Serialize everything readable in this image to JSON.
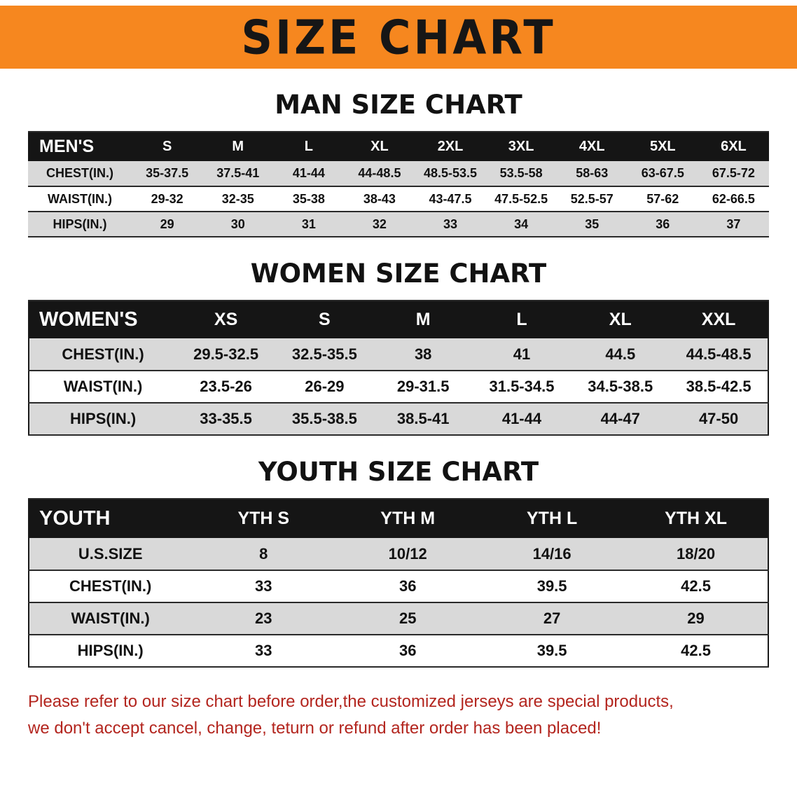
{
  "banner": {
    "title": "SIZE CHART"
  },
  "colors": {
    "banner_bg": "#F6871F",
    "header_bg": "#151515",
    "row_alt_bg": "#D9D9D9",
    "disclaimer_red": "#B3251E"
  },
  "sections": [
    {
      "heading": "MAN SIZE CHART",
      "table": {
        "header": [
          "MEN'S",
          "S",
          "M",
          "L",
          "XL",
          "2XL",
          "3XL",
          "4XL",
          "5XL",
          "6XL"
        ],
        "rows": [
          [
            "CHEST(IN.)",
            "35-37.5",
            "37.5-41",
            "41-44",
            "44-48.5",
            "48.5-53.5",
            "53.5-58",
            "58-63",
            "63-67.5",
            "67.5-72"
          ],
          [
            "WAIST(IN.)",
            "29-32",
            "32-35",
            "35-38",
            "38-43",
            "43-47.5",
            "47.5-52.5",
            "52.5-57",
            "57-62",
            "62-66.5"
          ],
          [
            "HIPS(IN.)",
            "29",
            "30",
            "31",
            "32",
            "33",
            "34",
            "35",
            "36",
            "37"
          ]
        ]
      }
    },
    {
      "heading": "WOMEN SIZE CHART",
      "table": {
        "header": [
          "WOMEN'S",
          "XS",
          "S",
          "M",
          "L",
          "XL",
          "XXL"
        ],
        "rows": [
          [
            "CHEST(IN.)",
            "29.5-32.5",
            "32.5-35.5",
            "38",
            "41",
            "44.5",
            "44.5-48.5"
          ],
          [
            "WAIST(IN.)",
            "23.5-26",
            "26-29",
            "29-31.5",
            "31.5-34.5",
            "34.5-38.5",
            "38.5-42.5"
          ],
          [
            "HIPS(IN.)",
            "33-35.5",
            "35.5-38.5",
            "38.5-41",
            "41-44",
            "44-47",
            "47-50"
          ]
        ]
      }
    },
    {
      "heading": "YOUTH SIZE CHART",
      "table": {
        "header": [
          "YOUTH",
          "YTH S",
          "YTH M",
          "YTH L",
          "YTH XL"
        ],
        "rows": [
          [
            "U.S.SIZE",
            "8",
            "10/12",
            "14/16",
            "18/20"
          ],
          [
            "CHEST(IN.)",
            "33",
            "36",
            "39.5",
            "42.5"
          ],
          [
            "WAIST(IN.)",
            "23",
            "25",
            "27",
            "29"
          ],
          [
            "HIPS(IN.)",
            "33",
            "36",
            "39.5",
            "42.5"
          ]
        ]
      }
    }
  ],
  "disclaimer": {
    "line1": "Please refer to our size chart before order,the customized jerseys are special products,",
    "line2": "we don't accept cancel, change, teturn or refund after order has been placed!"
  }
}
